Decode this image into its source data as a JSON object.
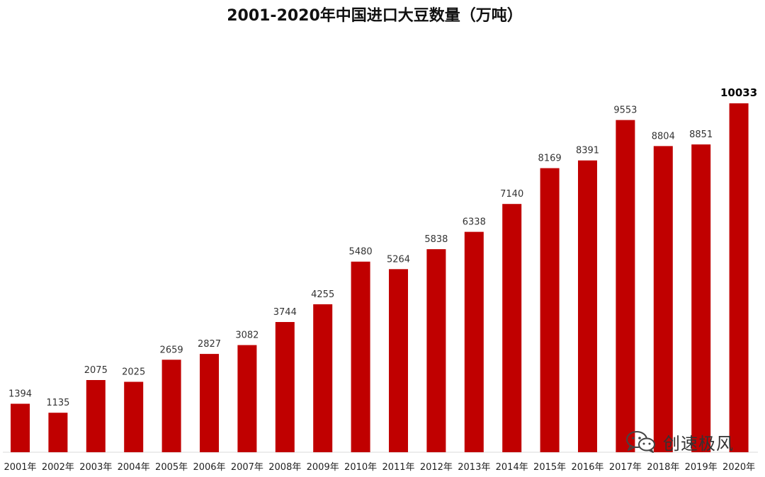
{
  "chart_data": {
    "type": "bar",
    "title": "2001-2020年中国进口大豆数量（万吨）",
    "xlabel": "",
    "ylabel": "",
    "ylim": [
      0,
      10500
    ],
    "grid": false,
    "legend": "none",
    "bar_color": "#C00000",
    "categories": [
      "2001年",
      "2002年",
      "2003年",
      "2004年",
      "2005年",
      "2006年",
      "2007年",
      "2008年",
      "2009年",
      "2010年",
      "2011年",
      "2012年",
      "2013年",
      "2014年",
      "2015年",
      "2016年",
      "2017年",
      "2018年",
      "2019年",
      "2020年"
    ],
    "values": [
      1394,
      1135,
      2075,
      2025,
      2659,
      2827,
      3082,
      3744,
      4255,
      5480,
      5264,
      5838,
      6338,
      7140,
      8169,
      8391,
      9553,
      8804,
      8851,
      10033
    ],
    "highlight_index": 19
  },
  "watermark": {
    "text": "创速极风",
    "icon": "wechat-icon"
  }
}
